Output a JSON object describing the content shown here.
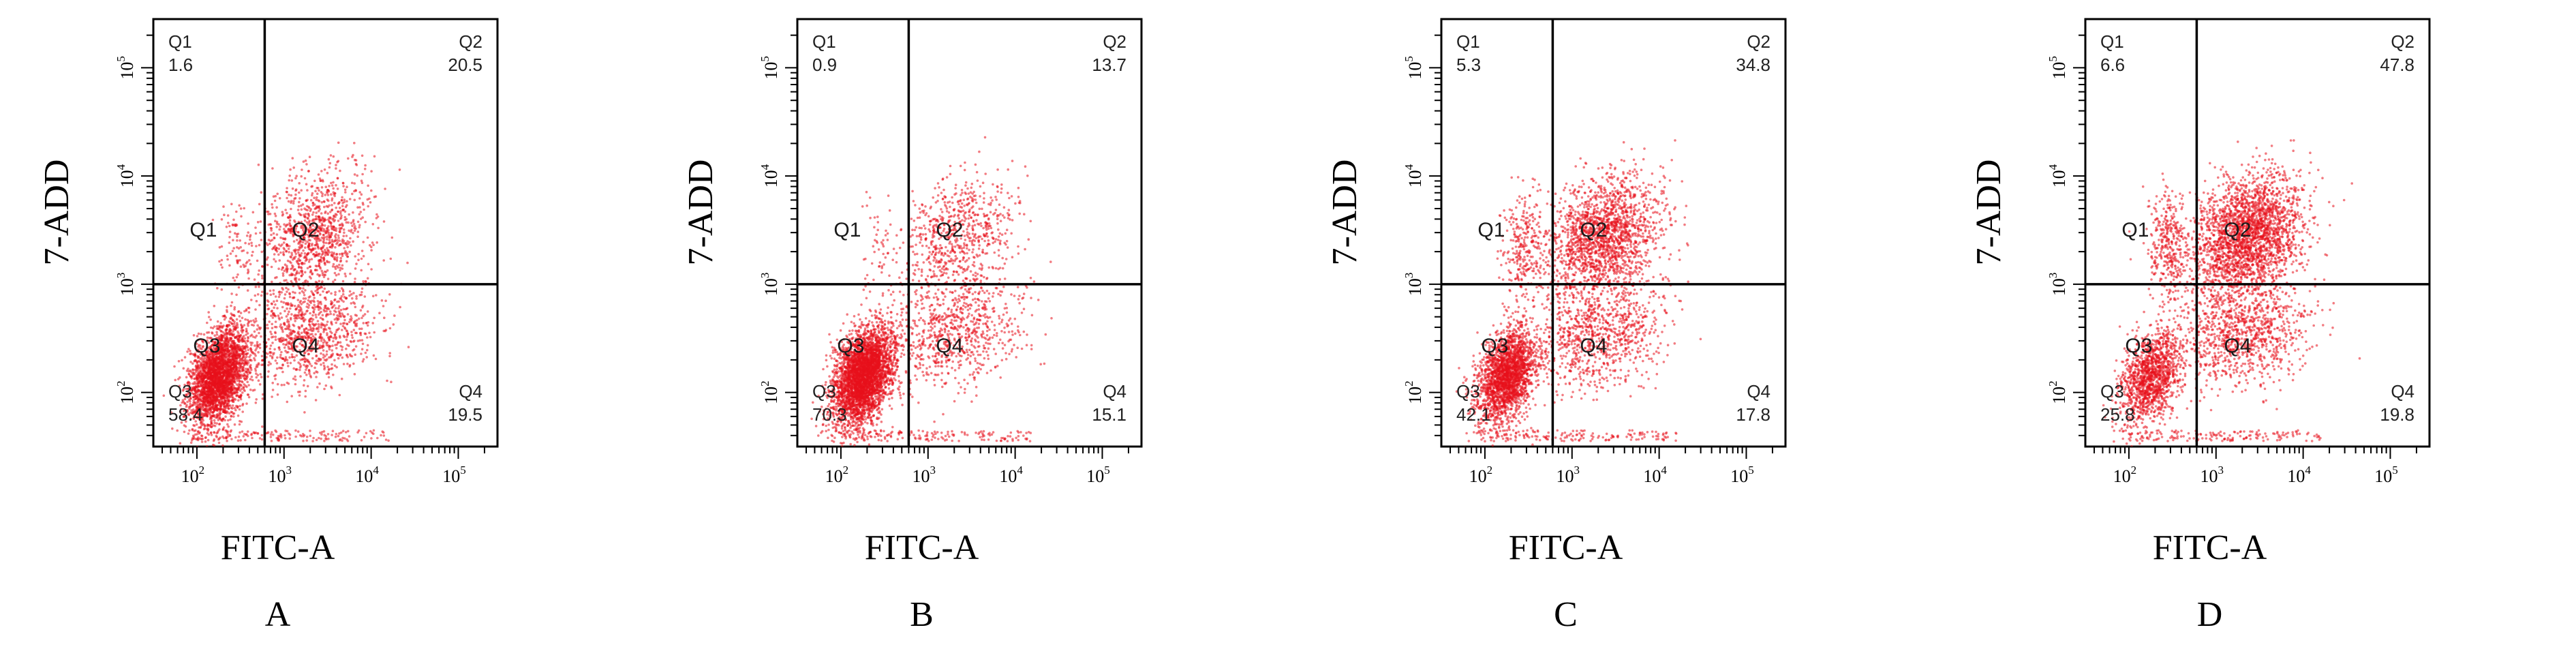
{
  "chart_data": [
    {
      "type": "scatter",
      "panel_label": "A",
      "xlabel": "FITC-A",
      "ylabel": "7-ADD",
      "x_scale": "log",
      "y_scale": "log",
      "x_ticks": [
        "10^2",
        "10^3",
        "10^4",
        "10^5"
      ],
      "y_ticks": [
        "10^2",
        "10^3",
        "10^4",
        "10^5"
      ],
      "gate": {
        "x": 600,
        "y": 1000
      },
      "gate_names": [
        "Q1",
        "Q2",
        "Q3",
        "Q4"
      ],
      "quadrants": [
        {
          "name": "Q1",
          "value": "1.6"
        },
        {
          "name": "Q2",
          "value": "20.5"
        },
        {
          "name": "Q3",
          "value": "58.4"
        },
        {
          "name": "Q4",
          "value": "19.5"
        }
      ],
      "series": [
        {
          "color": "#e8101c"
        }
      ]
    },
    {
      "type": "scatter",
      "panel_label": "B",
      "xlabel": "FITC-A",
      "ylabel": "7-ADD",
      "x_scale": "log",
      "y_scale": "log",
      "x_ticks": [
        "10^2",
        "10^3",
        "10^4",
        "10^5"
      ],
      "y_ticks": [
        "10^2",
        "10^3",
        "10^4",
        "10^5"
      ],
      "gate": {
        "x": 600,
        "y": 1000
      },
      "gate_names": [
        "Q1",
        "Q2",
        "Q3",
        "Q4"
      ],
      "quadrants": [
        {
          "name": "Q1",
          "value": "0.9"
        },
        {
          "name": "Q2",
          "value": "13.7"
        },
        {
          "name": "Q3",
          "value": "70.3"
        },
        {
          "name": "Q4",
          "value": "15.1"
        }
      ],
      "series": [
        {
          "color": "#e8101c"
        }
      ]
    },
    {
      "type": "scatter",
      "panel_label": "C",
      "xlabel": "FITC-A",
      "ylabel": "7-ADD",
      "x_scale": "log",
      "y_scale": "log",
      "x_ticks": [
        "10^2",
        "10^3",
        "10^4",
        "10^5"
      ],
      "y_ticks": [
        "10^2",
        "10^3",
        "10^4",
        "10^5"
      ],
      "gate": {
        "x": 600,
        "y": 1000
      },
      "gate_names": [
        "Q1",
        "Q2",
        "Q3",
        "Q4"
      ],
      "quadrants": [
        {
          "name": "Q1",
          "value": "5.3"
        },
        {
          "name": "Q2",
          "value": "34.8"
        },
        {
          "name": "Q3",
          "value": "42.1"
        },
        {
          "name": "Q4",
          "value": "17.8"
        }
      ],
      "series": [
        {
          "color": "#e8101c"
        }
      ]
    },
    {
      "type": "scatter",
      "panel_label": "D",
      "xlabel": "FITC-A",
      "ylabel": "7-ADD",
      "x_scale": "log",
      "y_scale": "log",
      "x_ticks": [
        "10^2",
        "10^3",
        "10^4",
        "10^5"
      ],
      "y_ticks": [
        "10^2",
        "10^3",
        "10^4",
        "10^5"
      ],
      "gate": {
        "x": 600,
        "y": 1000
      },
      "gate_names": [
        "Q1",
        "Q2",
        "Q3",
        "Q4"
      ],
      "quadrants": [
        {
          "name": "Q1",
          "value": "6.6"
        },
        {
          "name": "Q2",
          "value": "47.8"
        },
        {
          "name": "Q3",
          "value": "25.8"
        },
        {
          "name": "Q4",
          "value": "19.8"
        }
      ],
      "series": [
        {
          "color": "#e8101c"
        }
      ]
    }
  ]
}
